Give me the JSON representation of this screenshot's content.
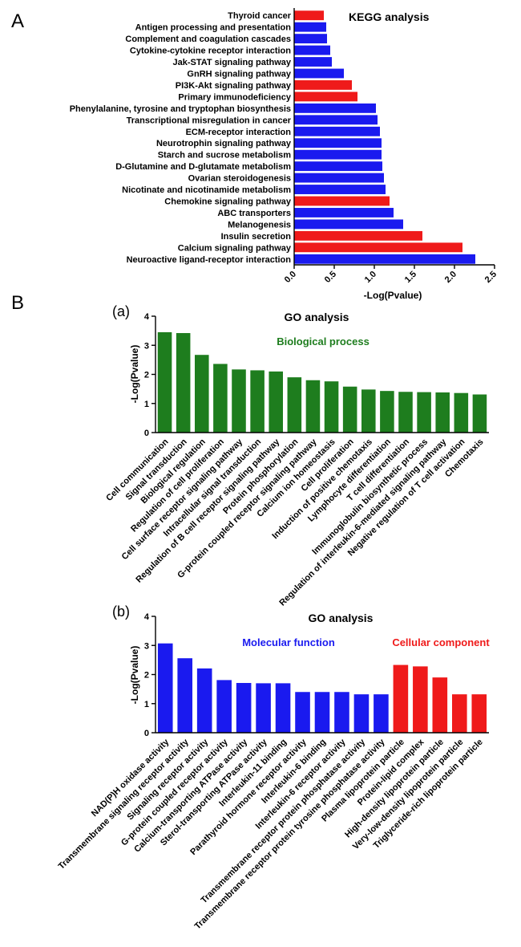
{
  "panels": {
    "a": "A",
    "b": "B",
    "sub_a": "(a)",
    "sub_b": "(b)"
  },
  "colors": {
    "blue": "#1a1aef",
    "red": "#ef1a1a",
    "green": "#1e7d1e"
  },
  "chart_data": [
    {
      "type": "bar",
      "orientation": "horizontal",
      "title": "KEGG analysis",
      "xlabel": "-Log(Pvalue)",
      "ylabel": "",
      "xlim": [
        0,
        2.5
      ],
      "ticks": [
        "0.0",
        "0.5",
        "1.0",
        "1.5",
        "2.0",
        "2.5"
      ],
      "categories": [
        "Thyroid cancer",
        "Antigen processing and presentation",
        "Complement and coagulation cascades",
        "Cytokine-cytokine receptor interaction",
        "Jak-STAT signaling pathway",
        "GnRH signaling pathway",
        "PI3K-Akt signaling pathway",
        "Primary immunodeficiency",
        "Phenylalanine, tyrosine and tryptophan biosynthesis",
        "Transcriptional misregulation in cancer",
        "ECM-receptor interaction",
        "Neurotrophin signaling pathway",
        "Starch and sucrose metabolism",
        "D-Glutamine and D-glutamate metabolism",
        "Ovarian steroidogenesis",
        "Nicotinate and nicotinamide metabolism",
        "Chemokine signaling pathway",
        "ABC transporters",
        "Melanogenesis",
        "Insulin secretion",
        "Calcium signaling pathway",
        "Neuroactive ligand-receptor interaction"
      ],
      "values": [
        0.37,
        0.4,
        0.41,
        0.45,
        0.47,
        0.62,
        0.72,
        0.79,
        1.02,
        1.04,
        1.07,
        1.09,
        1.09,
        1.1,
        1.12,
        1.14,
        1.19,
        1.24,
        1.36,
        1.6,
        2.1,
        2.26
      ],
      "colors": [
        "red",
        "blue",
        "blue",
        "blue",
        "blue",
        "blue",
        "red",
        "red",
        "blue",
        "blue",
        "blue",
        "blue",
        "blue",
        "blue",
        "blue",
        "blue",
        "red",
        "blue",
        "blue",
        "red",
        "red",
        "blue"
      ]
    },
    {
      "type": "bar",
      "title": "GO analysis",
      "legend": [
        {
          "label": "Biological process",
          "color": "green"
        }
      ],
      "xlabel": "",
      "ylabel": "-Log(Pvalue)",
      "ylim": [
        0,
        4
      ],
      "ticks": [
        "0",
        "1",
        "2",
        "3",
        "4"
      ],
      "categories": [
        "Cell communication",
        "Signal transduction",
        "Biological regulation",
        "Regulation of cell proliferation",
        "Cell surface receptor signaling pathway",
        "Intracellular signal transduction",
        "Regulation of B cell receptor signaling pathway",
        "Protein phosphorylation",
        "G-protein coupled receptor signaling pathway",
        "Calcium ion homeostasis",
        "Cell proliferation",
        "Induction of positive chemotaxis",
        "Lymphocyte differentiation",
        "T cell differentiation",
        "Immunoglobulin biosynthetic process",
        "Regulation of interleukin-6-mediated signaling pathway",
        "Negative regulation of T cell activation",
        "Chemotaxis"
      ],
      "values": [
        3.45,
        3.42,
        2.67,
        2.36,
        2.17,
        2.14,
        2.1,
        1.9,
        1.8,
        1.76,
        1.58,
        1.48,
        1.43,
        1.4,
        1.39,
        1.38,
        1.36,
        1.31
      ],
      "colors": [
        "green",
        "green",
        "green",
        "green",
        "green",
        "green",
        "green",
        "green",
        "green",
        "green",
        "green",
        "green",
        "green",
        "green",
        "green",
        "green",
        "green",
        "green"
      ]
    },
    {
      "type": "bar",
      "title": "GO analysis",
      "legend": [
        {
          "label": "Molecular function",
          "color": "blue"
        },
        {
          "label": "Cellular component",
          "color": "red"
        }
      ],
      "xlabel": "",
      "ylabel": "-Log(Pvalue)",
      "ylim": [
        0,
        4
      ],
      "ticks": [
        "0",
        "1",
        "2",
        "3",
        "4"
      ],
      "categories": [
        "NAD(P)H oxidase activity",
        "Transmembrane signaling receptor activity",
        "Signaling receptor activity",
        "G-protein coupled receptor activity",
        "Calcium-transporting ATPase activity",
        "Sterol-transporting ATPase activity",
        "Interleukin-11 binding",
        "Parathyroid hormone receptor activity",
        "Interleukin-6 binding",
        "Interleukin-6 receptor activity",
        "Transmembrane receptor protein phosphatase activity",
        "Transmembrane receptor protein tyrosine phosphatase activity",
        "Plasma lipoprotein particle",
        "Protein-lipid complex",
        "High-density lipoprotein particle",
        "Very-low-density lipoprotein particle",
        "Triglyceride-rich lipoprotein particle"
      ],
      "values": [
        3.07,
        2.56,
        2.21,
        1.81,
        1.71,
        1.7,
        1.7,
        1.4,
        1.4,
        1.4,
        1.32,
        1.32,
        2.33,
        2.28,
        1.9,
        1.32,
        1.32
      ],
      "colors": [
        "blue",
        "blue",
        "blue",
        "blue",
        "blue",
        "blue",
        "blue",
        "blue",
        "blue",
        "blue",
        "blue",
        "blue",
        "red",
        "red",
        "red",
        "red",
        "red"
      ]
    }
  ]
}
